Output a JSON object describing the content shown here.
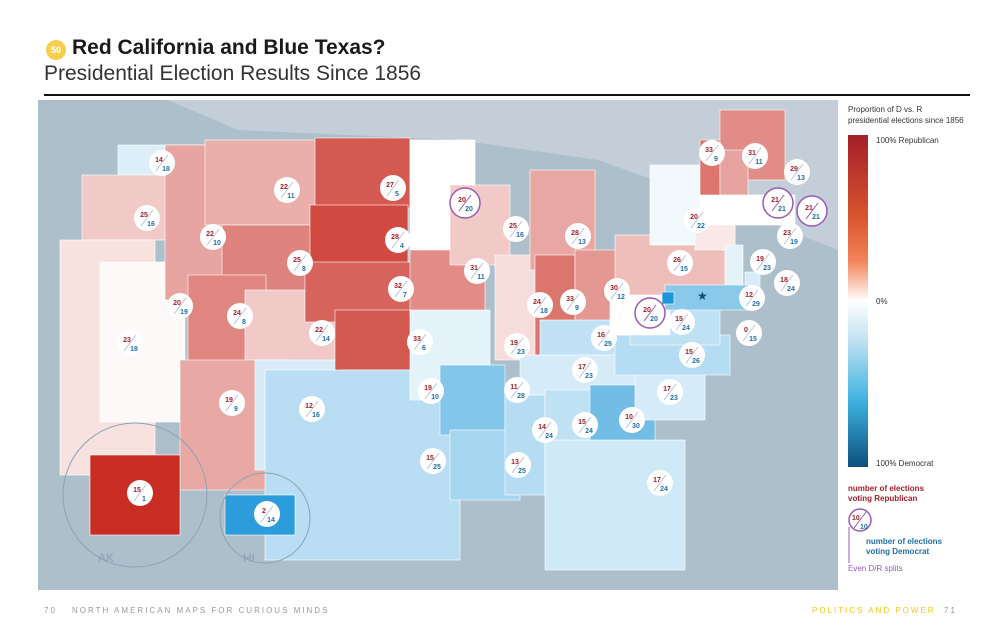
{
  "header": {
    "badge": "50",
    "title": "Red California and Blue Texas?",
    "subtitle": "Presidential Election Results Since 1856"
  },
  "legend": {
    "title_line1": "Proportion of D vs. R",
    "title_line2": "presidential elections since 1856",
    "top": "100% Republican",
    "mid": "0%",
    "bottom": "100% Democrat",
    "rep_label_1": "number of elections",
    "rep_label_2": "voting Republican",
    "dem_label_1": "number of elections",
    "dem_label_2": "voting Democrat",
    "even_label": "Even D/R splits",
    "example_r": "10",
    "example_d": "10"
  },
  "colors": {
    "republican": "#a31f2a",
    "democrat": "#1f6fa8",
    "even": "#9b59b6",
    "ocean": "#aebfcc",
    "land_other": "#c3ced8"
  },
  "insets": {
    "alaska": "AK",
    "hawaii": "HI"
  },
  "states": [
    {
      "r": 14,
      "d": 18
    },
    {
      "r": 25,
      "d": 16
    },
    {
      "r": 23,
      "d": 18
    },
    {
      "r": 20,
      "d": 19
    },
    {
      "r": 22,
      "d": 10
    },
    {
      "r": 22,
      "d": 11
    },
    {
      "r": 25,
      "d": 8
    },
    {
      "r": 24,
      "d": 8
    },
    {
      "r": 22,
      "d": 14
    },
    {
      "r": 19,
      "d": 9
    },
    {
      "r": 12,
      "d": 16
    },
    {
      "r": 27,
      "d": 5
    },
    {
      "r": 28,
      "d": 4
    },
    {
      "r": 32,
      "d": 7
    },
    {
      "r": 33,
      "d": 6
    },
    {
      "r": 19,
      "d": 10
    },
    {
      "r": 15,
      "d": 25
    },
    {
      "r": 20,
      "d": 20
    },
    {
      "r": 31,
      "d": 11
    },
    {
      "r": 19,
      "d": 23
    },
    {
      "r": 11,
      "d": 28
    },
    {
      "r": 13,
      "d": 25
    },
    {
      "r": 25,
      "d": 16
    },
    {
      "r": 24,
      "d": 18
    },
    {
      "r": 28,
      "d": 13
    },
    {
      "r": 33,
      "d": 9
    },
    {
      "r": 30,
      "d": 12
    },
    {
      "r": 16,
      "d": 25
    },
    {
      "r": 17,
      "d": 23
    },
    {
      "r": 14,
      "d": 24
    },
    {
      "r": 15,
      "d": 24
    },
    {
      "r": 10,
      "d": 30
    },
    {
      "r": 17,
      "d": 24
    },
    {
      "r": 17,
      "d": 23
    },
    {
      "r": 15,
      "d": 26
    },
    {
      "r": 15,
      "d": 24
    },
    {
      "r": 20,
      "d": 20
    },
    {
      "r": 26,
      "d": 15
    },
    {
      "r": 20,
      "d": 22
    },
    {
      "r": 33,
      "d": 9
    },
    {
      "r": 31,
      "d": 11
    },
    {
      "r": 29,
      "d": 13
    },
    {
      "r": 21,
      "d": 21
    },
    {
      "r": 21,
      "d": 21
    },
    {
      "r": 23,
      "d": 19
    },
    {
      "r": 19,
      "d": 23
    },
    {
      "r": 18,
      "d": 24
    },
    {
      "r": 12,
      "d": 29
    },
    {
      "r": 0,
      "d": 15
    },
    {
      "r": 15,
      "d": 1
    },
    {
      "r": 2,
      "d": 14
    }
  ],
  "footer": {
    "left_page": "70",
    "left_title": "NORTH AMERICAN MAPS FOR CURIOUS MINDS",
    "right_title": "POLITICS AND POWER",
    "right_page": "71"
  }
}
